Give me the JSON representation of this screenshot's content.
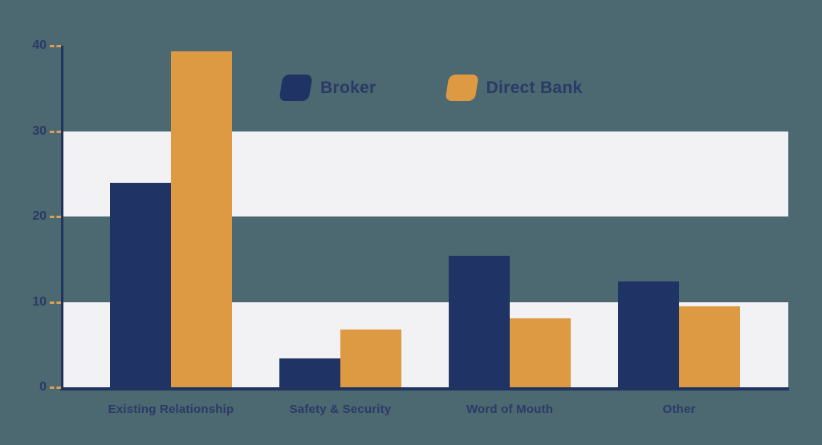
{
  "background_color": "#4C6871",
  "band_color": "#F2F2F4",
  "axis_color": "#21335F",
  "tick_mark_color": "#D9A055",
  "text_color": "#2B3A66",
  "chart_data": {
    "type": "bar",
    "title": "",
    "xlabel": "",
    "ylabel": "",
    "categories": [
      "Existing Relationship",
      "Safety & Security",
      "Word of Mouth",
      "Other"
    ],
    "series": [
      {
        "name": "Broker",
        "color": "#1F3365",
        "values": [
          23.9,
          3.4,
          15.4,
          12.4
        ]
      },
      {
        "name": "Direct Bank",
        "color": "#DE9A43",
        "values": [
          39.3,
          6.8,
          8.1,
          9.5
        ]
      }
    ],
    "ylim": [
      0,
      40
    ],
    "yticks": [
      0,
      10,
      20,
      30,
      40
    ],
    "grid_bands": [
      {
        "from": 20,
        "to": 30
      },
      {
        "from": 0,
        "to": 10
      }
    ],
    "grid": "horizontal-bands",
    "legend_position": "top"
  }
}
